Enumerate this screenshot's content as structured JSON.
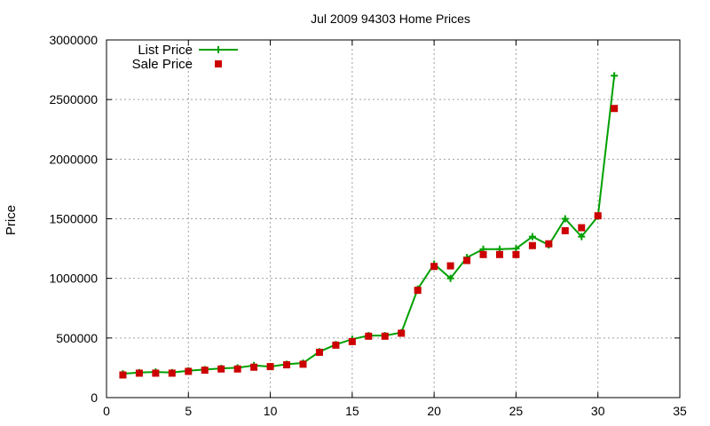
{
  "chart_data": {
    "type": "line",
    "title": "Jul 2009 94303 Home Prices",
    "xlabel": "",
    "ylabel": "Price",
    "xlim": [
      0,
      35
    ],
    "ylim": [
      0,
      3000000
    ],
    "xticks": [
      0,
      5,
      10,
      15,
      20,
      25,
      30,
      35
    ],
    "yticks": [
      0,
      500000,
      1000000,
      1500000,
      2000000,
      2500000,
      3000000
    ],
    "grid": true,
    "legend_position": "top-left",
    "series": [
      {
        "name": "List Price",
        "style": "line+cross",
        "color": "#00a000",
        "x": [
          1,
          2,
          3,
          4,
          5,
          6,
          7,
          8,
          9,
          10,
          11,
          12,
          13,
          14,
          15,
          16,
          17,
          18,
          19,
          20,
          21,
          22,
          23,
          24,
          25,
          26,
          27,
          28,
          29,
          30,
          31
        ],
        "y": [
          200000,
          210000,
          215000,
          210000,
          225000,
          235000,
          245000,
          250000,
          270000,
          260000,
          280000,
          290000,
          385000,
          445000,
          490000,
          520000,
          520000,
          545000,
          910000,
          1120000,
          1000000,
          1175000,
          1245000,
          1245000,
          1250000,
          1350000,
          1280000,
          1500000,
          1350000,
          1520000,
          2700000
        ]
      },
      {
        "name": "Sale Price",
        "style": "square-points",
        "color": "#cc0000",
        "x": [
          1,
          2,
          3,
          4,
          5,
          6,
          7,
          8,
          9,
          10,
          11,
          12,
          13,
          14,
          15,
          16,
          17,
          18,
          19,
          20,
          21,
          22,
          23,
          24,
          25,
          26,
          27,
          28,
          29,
          30,
          31
        ],
        "y": [
          190000,
          205000,
          205000,
          205000,
          220000,
          230000,
          240000,
          240000,
          255000,
          260000,
          275000,
          280000,
          380000,
          440000,
          470000,
          515000,
          515000,
          540000,
          900000,
          1100000,
          1105000,
          1150000,
          1200000,
          1200000,
          1200000,
          1275000,
          1290000,
          1400000,
          1425000,
          1525000,
          2425000
        ]
      }
    ]
  }
}
